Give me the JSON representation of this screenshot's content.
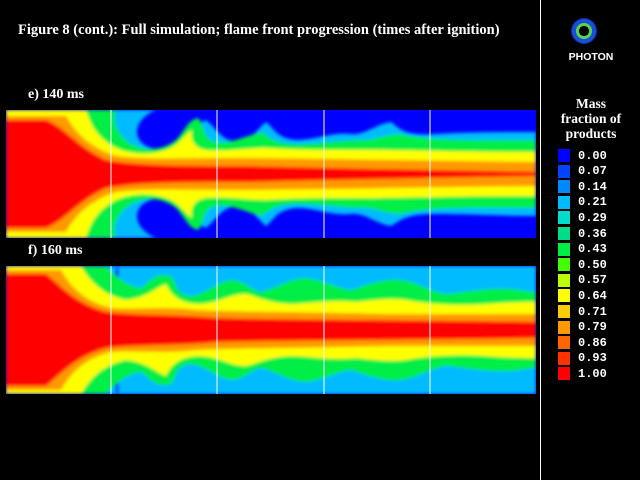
{
  "figure": {
    "title": "Figure 8 (cont.): Full simulation; flame front progression (times after ignition)"
  },
  "panels": [
    {
      "label": "e) 140 ms"
    },
    {
      "label": "f) 160 ms"
    }
  ],
  "sidebar": {
    "logo_text": "PHOTON",
    "legend": {
      "title_lines": [
        "Mass",
        "fraction of",
        "products"
      ],
      "entries": [
        {
          "value": "0.00",
          "color": "#0000ff"
        },
        {
          "value": "0.07",
          "color": "#0044ff"
        },
        {
          "value": "0.14",
          "color": "#0088ff"
        },
        {
          "value": "0.21",
          "color": "#00bbff"
        },
        {
          "value": "0.29",
          "color": "#00ddcc"
        },
        {
          "value": "0.36",
          "color": "#00dd88"
        },
        {
          "value": "0.43",
          "color": "#00ee44"
        },
        {
          "value": "0.50",
          "color": "#44ff00"
        },
        {
          "value": "0.57",
          "color": "#bbff00"
        },
        {
          "value": "0.64",
          "color": "#ffff00"
        },
        {
          "value": "0.71",
          "color": "#ffcc00"
        },
        {
          "value": "0.79",
          "color": "#ff9900"
        },
        {
          "value": "0.86",
          "color": "#ff6600"
        },
        {
          "value": "0.93",
          "color": "#ff3300"
        },
        {
          "value": "1.00",
          "color": "#ff0000"
        }
      ]
    }
  }
}
